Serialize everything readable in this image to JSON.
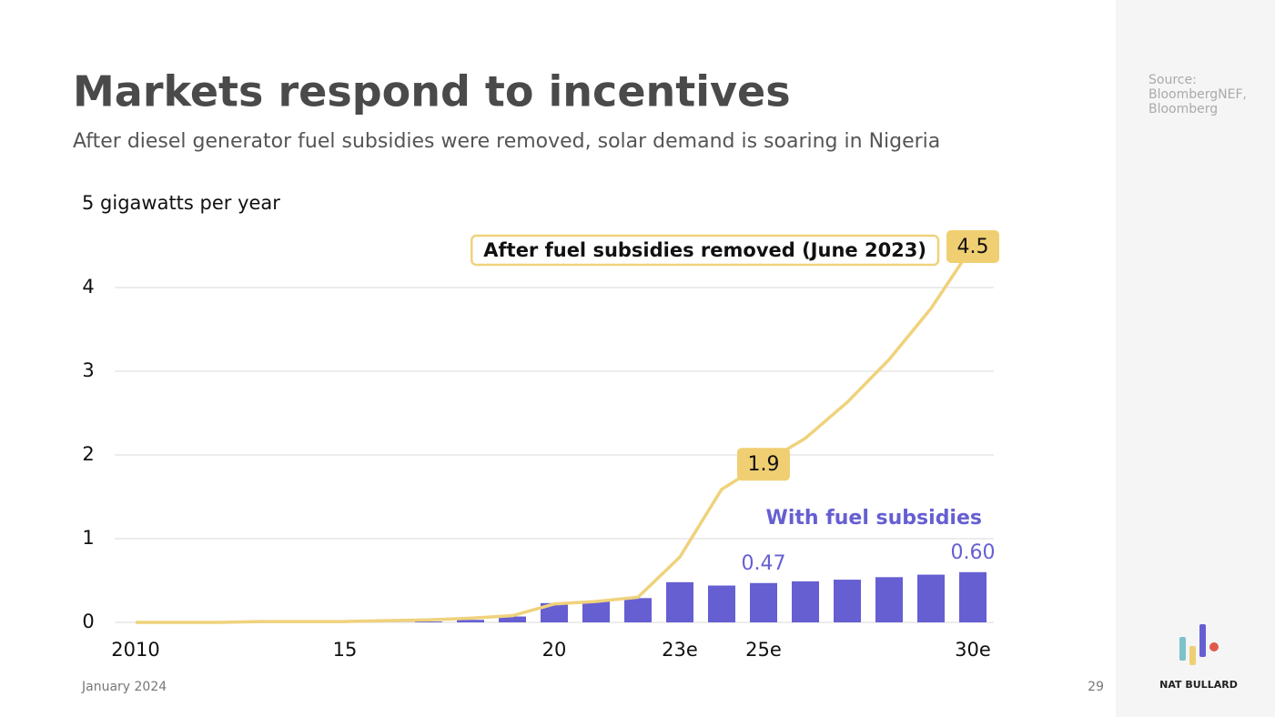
{
  "page": {
    "title": "Markets respond to incentives",
    "subtitle": "After diesel generator fuel subsidies were removed, solar demand is soaring in Nigeria",
    "source": "Source: BloombergNEF, Bloomberg",
    "date": "January 2024",
    "page_number": "29",
    "brand": "NAT BULLARD"
  },
  "chart_data": {
    "type": "bar",
    "y_label": "5 gigawatts per year",
    "categories": [
      "2010",
      null,
      null,
      null,
      null,
      "15",
      null,
      null,
      null,
      null,
      "20",
      null,
      null,
      "23e",
      null,
      "25e",
      null,
      null,
      null,
      null,
      "30e"
    ],
    "ylim": [
      0,
      5
    ],
    "yticks": [
      0,
      1,
      2,
      3,
      4
    ],
    "grid": true,
    "series": [
      {
        "name": "With fuel subsidies",
        "type": "bar",
        "color": "#665fd2",
        "values": [
          0,
          0,
          0,
          0,
          0,
          0,
          0,
          0.01,
          0.03,
          0.07,
          0.23,
          0.25,
          0.29,
          0.48,
          0.44,
          0.47,
          0.49,
          0.51,
          0.54,
          0.57,
          0.6
        ],
        "value_labels": [
          null,
          null,
          null,
          null,
          null,
          null,
          null,
          null,
          null,
          null,
          null,
          null,
          null,
          null,
          null,
          "0.47",
          null,
          null,
          null,
          null,
          "0.60"
        ]
      },
      {
        "name": "After fuel subsidies removed (June 2023)",
        "type": "line",
        "color": "#efd27c",
        "values": [
          0,
          0,
          0,
          0.01,
          0.01,
          0.01,
          0.02,
          0.03,
          0.05,
          0.08,
          0.22,
          0.25,
          0.3,
          0.78,
          1.59,
          1.9,
          2.2,
          2.63,
          3.14,
          3.75,
          4.5
        ],
        "value_labels": [
          null,
          null,
          null,
          null,
          null,
          null,
          null,
          null,
          null,
          null,
          null,
          null,
          null,
          null,
          null,
          "1.9",
          null,
          null,
          null,
          null,
          "4.5"
        ]
      }
    ]
  }
}
